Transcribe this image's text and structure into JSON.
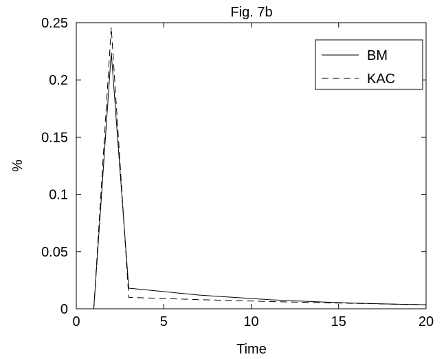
{
  "chart_data": {
    "type": "line",
    "title": "Fig. 7b",
    "xlabel": "Time",
    "ylabel": "%",
    "xlim": [
      0,
      20
    ],
    "ylim": [
      0,
      0.25
    ],
    "xticks": [
      0,
      5,
      10,
      15,
      20
    ],
    "xtick_labels": [
      "0",
      "5",
      "10",
      "15",
      "20"
    ],
    "yticks": [
      0,
      0.05,
      0.1,
      0.15,
      0.2,
      0.25
    ],
    "ytick_labels": [
      "0",
      "0.05",
      "0.1",
      "0.15",
      "0.2",
      "0.25"
    ],
    "grid": false,
    "legend_position": "top-right",
    "series": [
      {
        "name": "BM",
        "style": "solid",
        "color": "#000000",
        "x": [
          1,
          2,
          3,
          4,
          5,
          6,
          7,
          8,
          9,
          10,
          11,
          12,
          13,
          14,
          15,
          16,
          17,
          18,
          19,
          20
        ],
        "y": [
          0,
          0.224,
          0.018,
          0.0165,
          0.015,
          0.0135,
          0.012,
          0.011,
          0.01,
          0.009,
          0.008,
          0.0073,
          0.0066,
          0.006,
          0.0054,
          0.0049,
          0.0045,
          0.0041,
          0.0038,
          0.0035
        ]
      },
      {
        "name": "KAC",
        "style": "dashed",
        "color": "#000000",
        "x": [
          1,
          2,
          3,
          4,
          5,
          6,
          7,
          8,
          9,
          10,
          11,
          12,
          13,
          14,
          15,
          16,
          17,
          18,
          19,
          20
        ],
        "y": [
          0,
          0.246,
          0.01,
          0.0095,
          0.009,
          0.0085,
          0.008,
          0.0076,
          0.0072,
          0.0068,
          0.0064,
          0.006,
          0.0057,
          0.0053,
          0.005,
          0.0047,
          0.0044,
          0.0041,
          0.0038,
          0.0036
        ]
      }
    ]
  }
}
